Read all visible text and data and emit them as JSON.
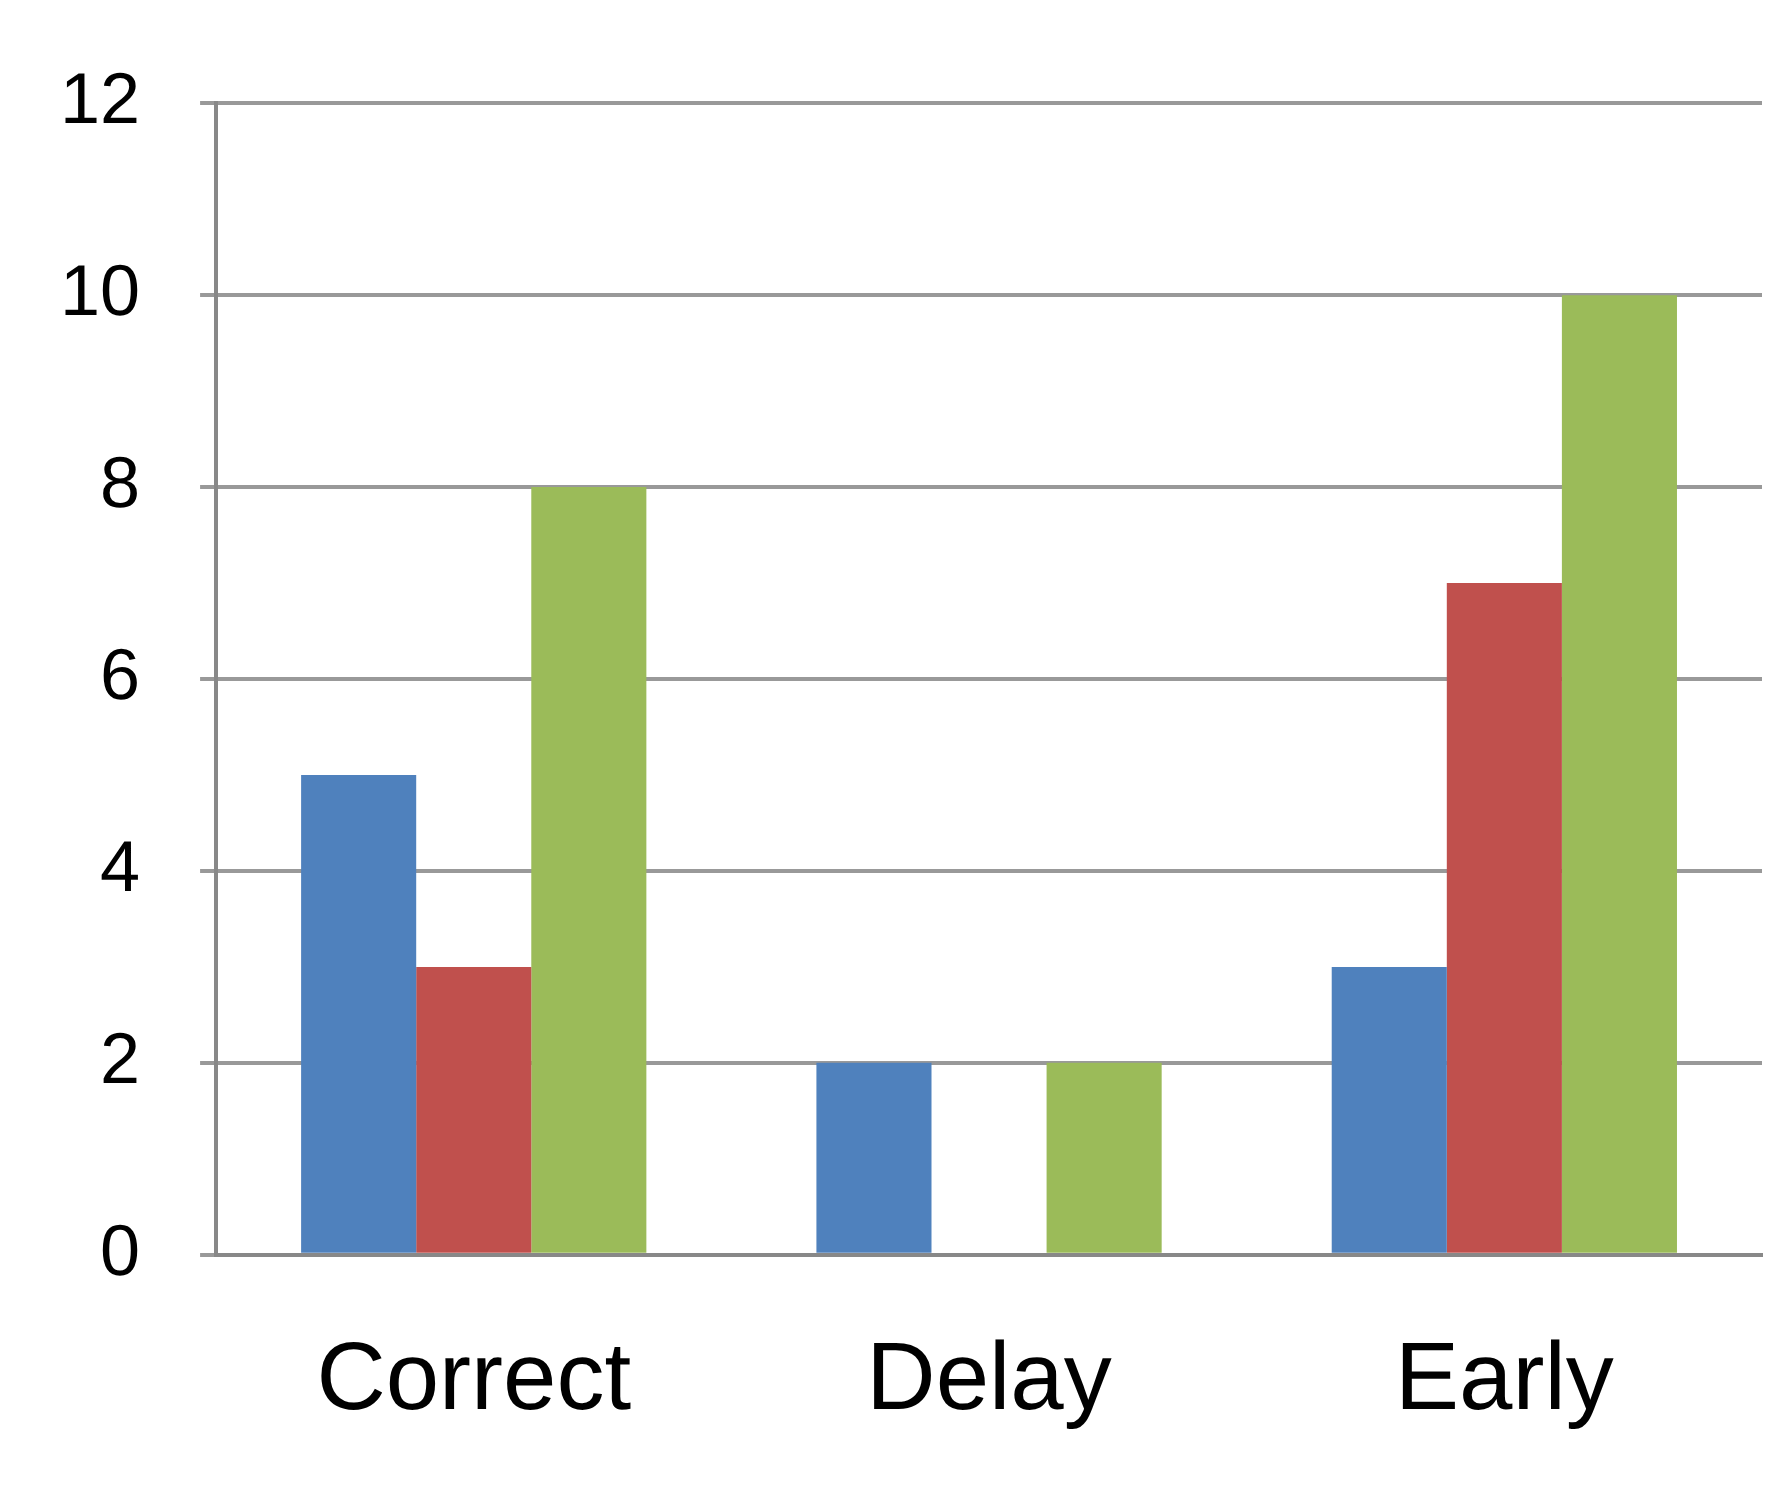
{
  "chart_data": {
    "type": "bar",
    "categories": [
      "Correct",
      "Delay",
      "Early"
    ],
    "series": [
      {
        "color": "#4f81bd",
        "values": [
          5,
          2,
          3
        ]
      },
      {
        "color": "#c0504d",
        "values": [
          3,
          0,
          7
        ]
      },
      {
        "color": "#9bbb59",
        "values": [
          8,
          2,
          10
        ]
      }
    ],
    "ylim": [
      0,
      12
    ],
    "yticks": [
      0,
      2,
      4,
      6,
      8,
      10,
      12
    ],
    "grid": "y",
    "legend": false
  }
}
